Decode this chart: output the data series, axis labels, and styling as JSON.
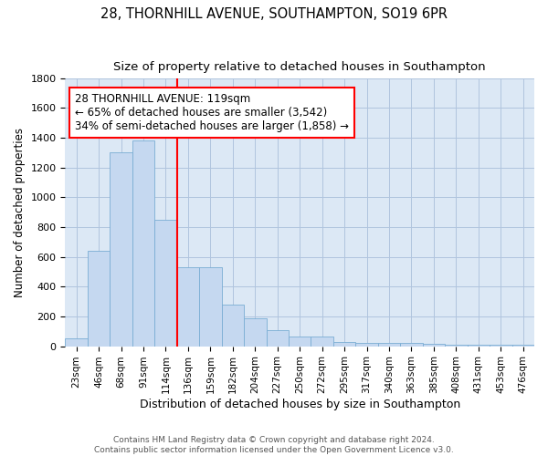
{
  "title": "28, THORNHILL AVENUE, SOUTHAMPTON, SO19 6PR",
  "subtitle": "Size of property relative to detached houses in Southampton",
  "xlabel": "Distribution of detached houses by size in Southampton",
  "ylabel": "Number of detached properties",
  "categories": [
    "23sqm",
    "46sqm",
    "68sqm",
    "91sqm",
    "114sqm",
    "136sqm",
    "159sqm",
    "182sqm",
    "204sqm",
    "227sqm",
    "250sqm",
    "272sqm",
    "295sqm",
    "317sqm",
    "340sqm",
    "363sqm",
    "385sqm",
    "408sqm",
    "431sqm",
    "453sqm",
    "476sqm"
  ],
  "values": [
    50,
    640,
    1300,
    1380,
    850,
    530,
    530,
    280,
    185,
    105,
    65,
    65,
    30,
    25,
    25,
    20,
    15,
    10,
    10,
    8,
    8
  ],
  "bar_color": "#c5d8f0",
  "bar_edge_color": "#7aadd4",
  "vline_color": "red",
  "vline_index": 4,
  "annotation_line1": "28 THORNHILL AVENUE: 119sqm",
  "annotation_line2": "← 65% of detached houses are smaller (3,542)",
  "annotation_line3": "34% of semi-detached houses are larger (1,858) →",
  "annotation_box_color": "white",
  "annotation_box_edge_color": "red",
  "ylim": [
    0,
    1800
  ],
  "yticks": [
    0,
    200,
    400,
    600,
    800,
    1000,
    1200,
    1400,
    1600,
    1800
  ],
  "grid_color": "#b0c4de",
  "bg_color": "#dce8f5",
  "footer1": "Contains HM Land Registry data © Crown copyright and database right 2024.",
  "footer2": "Contains public sector information licensed under the Open Government Licence v3.0.",
  "title_fontsize": 10.5,
  "subtitle_fontsize": 9.5,
  "annot_fontsize": 8.5
}
